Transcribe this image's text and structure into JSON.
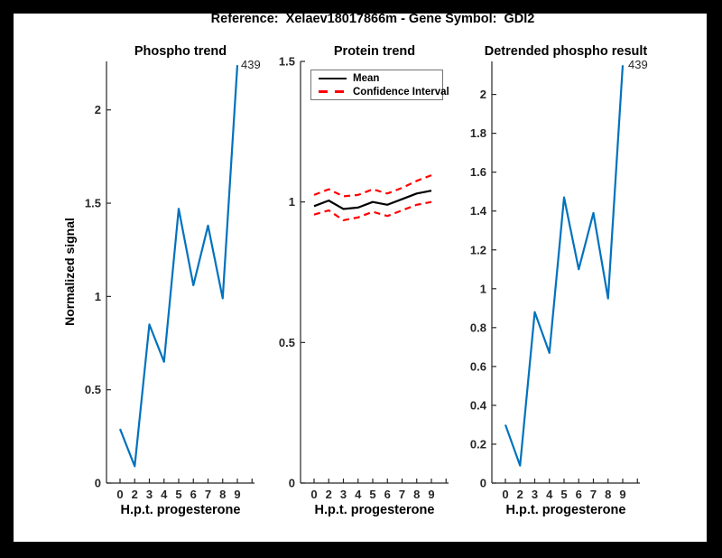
{
  "window": {
    "background": "#000000",
    "figure_background": "#ffffff"
  },
  "header": {
    "title": "Reference:  Xelaev18017866m - Gene Symbol:  GDI2"
  },
  "colors": {
    "signal_blue": "#0072BD",
    "confidence_red": "#FF0000",
    "mean_black": "#000000",
    "axis_text": "#262626"
  },
  "chart_data": [
    {
      "type": "line",
      "title": "Phospho trend",
      "ylabel": "Normalized signal",
      "xlabel": "H.p.t. progesterone",
      "x": [
        0,
        2,
        3,
        4,
        5,
        6,
        7,
        8,
        9
      ],
      "x_tick_labels": [
        "0",
        "2",
        "3",
        "4",
        "5",
        "6",
        "7",
        "8",
        "9"
      ],
      "y_ticks": [
        0,
        0.5,
        1,
        1.5,
        2
      ],
      "y_tick_labels": [
        "0",
        "0.5",
        "1",
        "1.5",
        "2"
      ],
      "ylim": [
        0,
        2.26
      ],
      "grid": false,
      "annotation": "439",
      "series": [
        {
          "name": "Phospho signal",
          "color": "#0072BD",
          "dash": "solid",
          "values": [
            0.29,
            0.09,
            0.85,
            0.65,
            1.47,
            1.06,
            1.38,
            0.99,
            2.24
          ]
        }
      ]
    },
    {
      "type": "line",
      "title": "Protein trend",
      "xlabel": "H.p.t. progesterone",
      "x": [
        0,
        2,
        3,
        4,
        5,
        6,
        7,
        8,
        9
      ],
      "x_tick_labels": [
        "0",
        "2",
        "3",
        "4",
        "5",
        "6",
        "7",
        "8",
        "9"
      ],
      "y_ticks": [
        0,
        0.5,
        1,
        1.5
      ],
      "y_tick_labels": [
        "0",
        "0.5",
        "1",
        "1.5"
      ],
      "ylim": [
        0,
        1.5
      ],
      "grid": false,
      "legend": [
        "Mean",
        "Confidence Interval"
      ],
      "legend_position": "top-left",
      "series": [
        {
          "name": "Mean",
          "color": "#000000",
          "dash": "solid",
          "values": [
            0.985,
            1.005,
            0.975,
            0.98,
            1.0,
            0.99,
            1.01,
            1.03,
            1.04
          ]
        },
        {
          "name": "Confidence Interval upper",
          "color": "#FF0000",
          "dash": "dashed",
          "values": [
            1.025,
            1.045,
            1.02,
            1.025,
            1.045,
            1.03,
            1.05,
            1.075,
            1.095
          ]
        },
        {
          "name": "Confidence Interval lower",
          "color": "#FF0000",
          "dash": "dashed",
          "values": [
            0.955,
            0.97,
            0.935,
            0.945,
            0.965,
            0.95,
            0.97,
            0.99,
            1.0
          ]
        }
      ]
    },
    {
      "type": "line",
      "title": "Detrended phospho result",
      "xlabel": "H.p.t. progesterone",
      "x": [
        0,
        2,
        3,
        4,
        5,
        6,
        7,
        8,
        9
      ],
      "x_tick_labels": [
        "0",
        "2",
        "3",
        "4",
        "5",
        "6",
        "7",
        "8",
        "9"
      ],
      "y_ticks": [
        0,
        0.2,
        0.4,
        0.6,
        0.8,
        1,
        1.2,
        1.4,
        1.6,
        1.8,
        2
      ],
      "y_tick_labels": [
        "0",
        "0.2",
        "0.4",
        "0.6",
        "0.8",
        "1",
        "1.2",
        "1.4",
        "1.6",
        "1.8",
        "2"
      ],
      "ylim": [
        0,
        2.17
      ],
      "grid": false,
      "annotation": "439",
      "series": [
        {
          "name": "Detrended phospho signal",
          "color": "#0072BD",
          "dash": "solid",
          "values": [
            0.3,
            0.09,
            0.88,
            0.67,
            1.47,
            1.1,
            1.39,
            0.95,
            2.15
          ]
        }
      ]
    }
  ]
}
